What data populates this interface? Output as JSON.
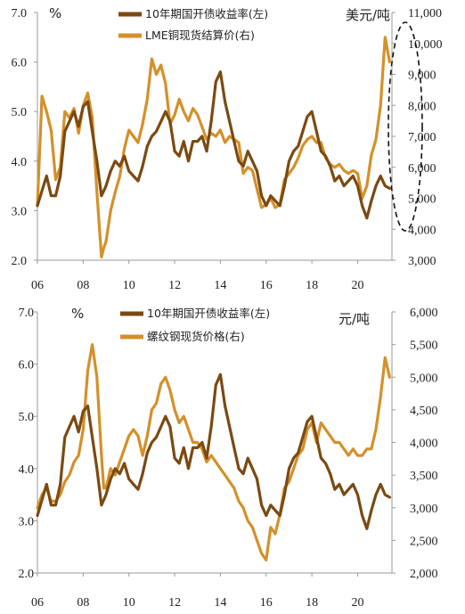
{
  "chart_data": [
    {
      "type": "line",
      "left_unit": "%",
      "right_unit": "美元/吨",
      "x_tick_labels": [
        "06",
        "08",
        "10",
        "12",
        "14",
        "16",
        "18",
        "20"
      ],
      "x_range": [
        2006.0,
        2021.5
      ],
      "left_axis": {
        "range": [
          2.0,
          7.0
        ],
        "ticks": [
          "2.0",
          "3.0",
          "4.0",
          "5.0",
          "6.0",
          "7.0"
        ]
      },
      "right_axis": {
        "range": [
          3000,
          11000
        ],
        "ticks": [
          "3,000",
          "4,000",
          "5,000",
          "6,000",
          "7,000",
          "8,000",
          "9,000",
          "10,000",
          "11,000"
        ]
      },
      "annotation": "dashed ellipse highlighting recent LME copper price surge near right axis",
      "series": [
        {
          "name": "10年期国开债收益率(左)",
          "axis": "left",
          "color": "#7a4a12",
          "x": [
            2006.0,
            2006.2,
            2006.4,
            2006.6,
            2006.8,
            2007.0,
            2007.2,
            2007.4,
            2007.6,
            2007.8,
            2008.0,
            2008.2,
            2008.4,
            2008.6,
            2008.8,
            2008.9,
            2009.0,
            2009.2,
            2009.4,
            2009.6,
            2009.8,
            2010.0,
            2010.2,
            2010.4,
            2010.6,
            2010.8,
            2011.0,
            2011.2,
            2011.4,
            2011.6,
            2011.8,
            2012.0,
            2012.2,
            2012.4,
            2012.6,
            2012.8,
            2013.0,
            2013.2,
            2013.4,
            2013.6,
            2013.8,
            2014.0,
            2014.2,
            2014.4,
            2014.6,
            2014.8,
            2015.0,
            2015.2,
            2015.4,
            2015.6,
            2015.8,
            2016.0,
            2016.2,
            2016.4,
            2016.6,
            2016.8,
            2017.0,
            2017.2,
            2017.4,
            2017.6,
            2017.8,
            2018.0,
            2018.2,
            2018.4,
            2018.6,
            2018.8,
            2019.0,
            2019.2,
            2019.4,
            2019.6,
            2019.8,
            2020.0,
            2020.2,
            2020.4,
            2020.6,
            2020.8,
            2021.0,
            2021.2,
            2021.4
          ],
          "y": [
            3.1,
            3.4,
            3.7,
            3.3,
            3.3,
            3.7,
            4.6,
            4.8,
            5.0,
            4.7,
            5.1,
            5.2,
            4.6,
            4.0,
            3.3,
            3.4,
            3.5,
            3.8,
            4.0,
            3.9,
            4.1,
            3.8,
            3.7,
            3.6,
            3.9,
            4.3,
            4.5,
            4.6,
            4.8,
            5.0,
            4.8,
            4.2,
            4.1,
            4.4,
            4.0,
            4.4,
            4.4,
            4.5,
            4.2,
            4.8,
            5.6,
            5.8,
            5.2,
            4.8,
            4.4,
            4.0,
            3.9,
            4.2,
            4.0,
            3.8,
            3.3,
            3.1,
            3.3,
            3.2,
            3.1,
            3.5,
            4.0,
            4.2,
            4.3,
            4.6,
            4.9,
            5.0,
            4.6,
            4.2,
            4.1,
            3.9,
            3.6,
            3.7,
            3.5,
            3.6,
            3.7,
            3.5,
            3.1,
            2.85,
            3.2,
            3.5,
            3.7,
            3.5,
            3.45
          ]
        },
        {
          "name": "LME铜现货结算价(右)",
          "axis": "right",
          "color": "#d4902a",
          "x": [
            2006.0,
            2006.2,
            2006.4,
            2006.6,
            2006.8,
            2007.0,
            2007.2,
            2007.4,
            2007.6,
            2007.8,
            2008.0,
            2008.2,
            2008.4,
            2008.6,
            2008.8,
            2008.9,
            2009.0,
            2009.2,
            2009.4,
            2009.6,
            2009.8,
            2010.0,
            2010.2,
            2010.4,
            2010.6,
            2010.8,
            2011.0,
            2011.2,
            2011.4,
            2011.6,
            2011.8,
            2012.0,
            2012.2,
            2012.4,
            2012.6,
            2012.8,
            2013.0,
            2013.2,
            2013.4,
            2013.6,
            2013.8,
            2014.0,
            2014.2,
            2014.4,
            2014.6,
            2014.8,
            2015.0,
            2015.2,
            2015.4,
            2015.6,
            2015.8,
            2016.0,
            2016.2,
            2016.4,
            2016.6,
            2016.8,
            2017.0,
            2017.2,
            2017.4,
            2017.6,
            2017.8,
            2018.0,
            2018.2,
            2018.4,
            2018.6,
            2018.8,
            2019.0,
            2019.2,
            2019.4,
            2019.6,
            2019.8,
            2020.0,
            2020.2,
            2020.4,
            2020.6,
            2020.8,
            2021.0,
            2021.2,
            2021.4
          ],
          "y": [
            4800,
            8300,
            7800,
            7200,
            5600,
            6000,
            7800,
            7600,
            7900,
            7100,
            8000,
            8400,
            7600,
            5200,
            3100,
            3400,
            3600,
            4600,
            5200,
            5700,
            6600,
            7200,
            7000,
            6800,
            7400,
            8200,
            9500,
            9000,
            9300,
            8700,
            7400,
            7700,
            8200,
            7800,
            7500,
            7900,
            7700,
            7300,
            6900,
            7100,
            7000,
            7200,
            6800,
            7000,
            6900,
            6800,
            5800,
            6000,
            5900,
            5300,
            4700,
            4800,
            5000,
            4700,
            4800,
            5600,
            5800,
            6000,
            6300,
            6700,
            6900,
            7000,
            6800,
            6800,
            6300,
            6100,
            6000,
            6100,
            5900,
            5800,
            5900,
            5800,
            5000,
            5400,
            6400,
            6900,
            8000,
            10200,
            9400
          ]
        }
      ]
    },
    {
      "type": "line",
      "left_unit": "%",
      "right_unit": "元/吨",
      "x_tick_labels": [
        "06",
        "08",
        "10",
        "12",
        "14",
        "16",
        "18",
        "20"
      ],
      "x_range": [
        2006.0,
        2021.5
      ],
      "left_axis": {
        "range": [
          2.0,
          7.0
        ],
        "ticks": [
          "2.0",
          "3.0",
          "4.0",
          "5.0",
          "6.0",
          "7.0"
        ]
      },
      "right_axis": {
        "range": [
          2000,
          6000
        ],
        "ticks": [
          "2,000",
          "2,500",
          "3,000",
          "3,500",
          "4,000",
          "4,500",
          "5,000",
          "5,500",
          "6,000"
        ]
      },
      "series": [
        {
          "name": "10年期国开债收益率(左)",
          "axis": "left",
          "color": "#7a4a12",
          "x": [
            2006.0,
            2006.2,
            2006.4,
            2006.6,
            2006.8,
            2007.0,
            2007.2,
            2007.4,
            2007.6,
            2007.8,
            2008.0,
            2008.2,
            2008.4,
            2008.6,
            2008.8,
            2008.9,
            2009.0,
            2009.2,
            2009.4,
            2009.6,
            2009.8,
            2010.0,
            2010.2,
            2010.4,
            2010.6,
            2010.8,
            2011.0,
            2011.2,
            2011.4,
            2011.6,
            2011.8,
            2012.0,
            2012.2,
            2012.4,
            2012.6,
            2012.8,
            2013.0,
            2013.2,
            2013.4,
            2013.6,
            2013.8,
            2014.0,
            2014.2,
            2014.4,
            2014.6,
            2014.8,
            2015.0,
            2015.2,
            2015.4,
            2015.6,
            2015.8,
            2016.0,
            2016.2,
            2016.4,
            2016.6,
            2016.8,
            2017.0,
            2017.2,
            2017.4,
            2017.6,
            2017.8,
            2018.0,
            2018.2,
            2018.4,
            2018.6,
            2018.8,
            2019.0,
            2019.2,
            2019.4,
            2019.6,
            2019.8,
            2020.0,
            2020.2,
            2020.4,
            2020.6,
            2020.8,
            2021.0,
            2021.2,
            2021.4
          ],
          "y": [
            3.1,
            3.4,
            3.7,
            3.3,
            3.3,
            3.7,
            4.6,
            4.8,
            5.0,
            4.7,
            5.1,
            5.2,
            4.6,
            4.0,
            3.3,
            3.4,
            3.5,
            3.8,
            4.0,
            3.9,
            4.1,
            3.8,
            3.7,
            3.6,
            3.9,
            4.3,
            4.5,
            4.6,
            4.8,
            5.0,
            4.8,
            4.2,
            4.1,
            4.4,
            4.0,
            4.4,
            4.4,
            4.5,
            4.2,
            4.8,
            5.6,
            5.8,
            5.2,
            4.8,
            4.4,
            4.0,
            3.9,
            4.2,
            4.0,
            3.8,
            3.3,
            3.1,
            3.3,
            3.2,
            3.1,
            3.5,
            4.0,
            4.2,
            4.3,
            4.6,
            4.9,
            5.0,
            4.6,
            4.2,
            4.1,
            3.9,
            3.6,
            3.7,
            3.5,
            3.6,
            3.7,
            3.5,
            3.1,
            2.85,
            3.2,
            3.5,
            3.7,
            3.5,
            3.45
          ]
        },
        {
          "name": "螺纹钢现货价格(右)",
          "axis": "right",
          "color": "#d4902a",
          "x": [
            2006.0,
            2006.2,
            2006.4,
            2006.6,
            2006.8,
            2007.0,
            2007.2,
            2007.4,
            2007.6,
            2007.8,
            2008.0,
            2008.2,
            2008.4,
            2008.6,
            2008.8,
            2008.9,
            2009.0,
            2009.2,
            2009.4,
            2009.6,
            2009.8,
            2010.0,
            2010.2,
            2010.4,
            2010.6,
            2010.8,
            2011.0,
            2011.2,
            2011.4,
            2011.6,
            2011.8,
            2012.0,
            2012.2,
            2012.4,
            2012.6,
            2012.8,
            2013.0,
            2013.2,
            2013.4,
            2013.6,
            2013.8,
            2014.0,
            2014.2,
            2014.4,
            2014.6,
            2014.8,
            2015.0,
            2015.2,
            2015.4,
            2015.6,
            2015.8,
            2016.0,
            2016.2,
            2016.4,
            2016.6,
            2016.8,
            2017.0,
            2017.2,
            2017.4,
            2017.6,
            2017.8,
            2018.0,
            2018.2,
            2018.4,
            2018.6,
            2018.8,
            2019.0,
            2019.2,
            2019.4,
            2019.6,
            2019.8,
            2020.0,
            2020.2,
            2020.4,
            2020.6,
            2020.8,
            2021.0,
            2021.2,
            2021.4
          ],
          "y": [
            3000,
            3200,
            3300,
            3100,
            3100,
            3200,
            3400,
            3500,
            3700,
            3800,
            4200,
            5100,
            5500,
            5000,
            3800,
            3300,
            3300,
            3600,
            3500,
            3700,
            3900,
            4100,
            4200,
            4100,
            3800,
            4100,
            4500,
            4600,
            4900,
            5000,
            4800,
            4500,
            4300,
            4400,
            4200,
            4000,
            4000,
            3900,
            3700,
            3800,
            3700,
            3600,
            3500,
            3400,
            3300,
            3100,
            3000,
            2800,
            2700,
            2500,
            2300,
            2200,
            2700,
            2600,
            2900,
            3300,
            3400,
            3600,
            3800,
            3900,
            4200,
            4300,
            4000,
            4300,
            4200,
            4100,
            4000,
            4000,
            3900,
            3800,
            3900,
            3800,
            3800,
            3900,
            3900,
            4200,
            4700,
            5300,
            5000
          ]
        }
      ]
    }
  ]
}
